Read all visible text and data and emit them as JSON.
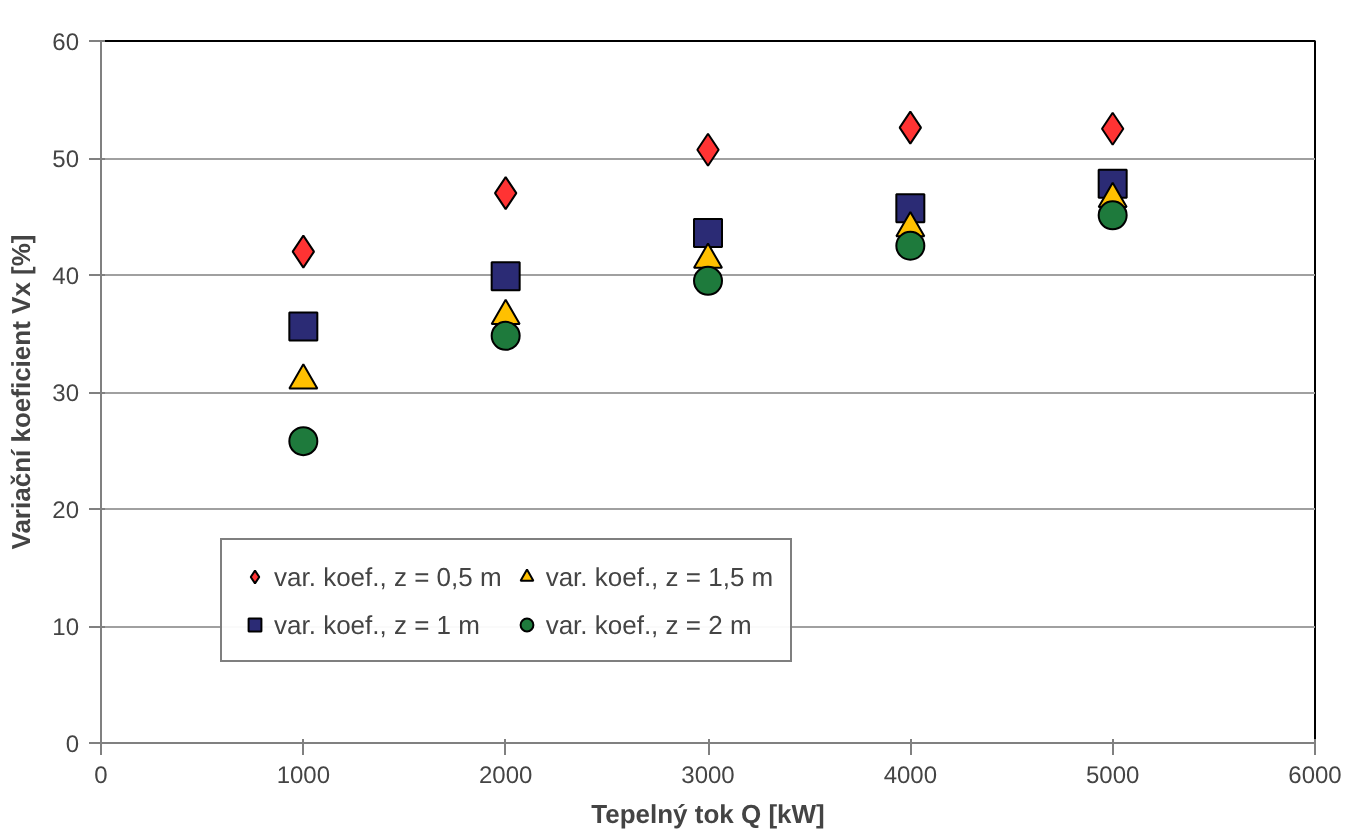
{
  "chart_data": {
    "type": "scatter",
    "xlabel": "Tepelný tok Q [kW]",
    "ylabel": "Variační koeficient Vx [%]",
    "x": [
      1000,
      2000,
      3000,
      4000,
      5000
    ],
    "series": [
      {
        "name": "var. koef., z = 0,5 m",
        "color": "#ff3333",
        "marker": "diamond",
        "values": [
          42,
          47,
          50.7,
          52.6,
          52.5
        ]
      },
      {
        "name": "var. koef., z = 1 m",
        "color": "#2b2b75",
        "marker": "square",
        "values": [
          35.6,
          39.9,
          43.6,
          45.7,
          47.8
        ]
      },
      {
        "name": "var. koef., z = 1,5 m",
        "color": "#ffc000",
        "marker": "triangle",
        "values": [
          31,
          36.5,
          41.3,
          44,
          46.5
        ]
      },
      {
        "name": "var. koef., z = 2 m",
        "color": "#1e7a3c",
        "marker": "circle",
        "values": [
          25.8,
          34.8,
          39.5,
          42.5,
          45.1
        ]
      }
    ],
    "xlim": [
      0,
      6000
    ],
    "ylim": [
      0,
      60
    ],
    "xticks": [
      0,
      1000,
      2000,
      3000,
      4000,
      5000,
      6000
    ],
    "yticks": [
      0,
      10,
      20,
      30,
      40,
      50,
      60
    ],
    "grid": "y",
    "legend": "bottom"
  }
}
